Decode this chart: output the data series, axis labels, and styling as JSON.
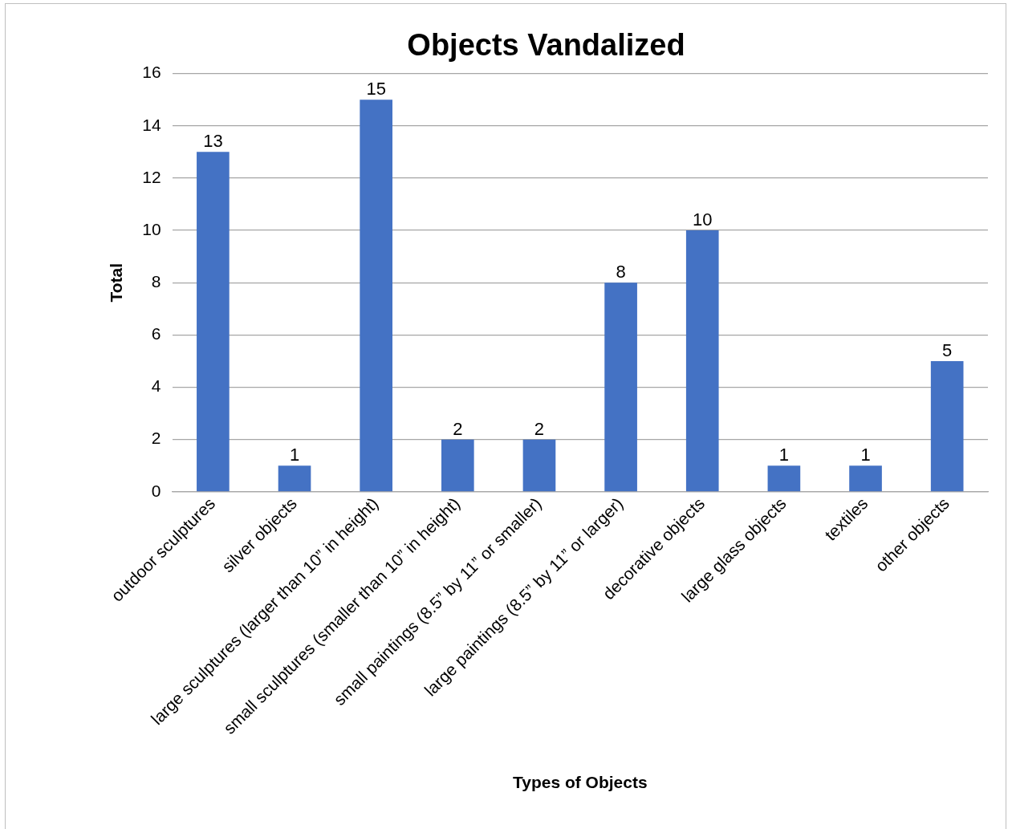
{
  "chart_data": {
    "type": "bar",
    "title": "Objects Vandalized",
    "xlabel": "Types of Objects",
    "ylabel": "Total",
    "categories": [
      "outdoor sculptures",
      "silver objects",
      "large sculptures (larger than 10” in height)",
      "small sculptures (smaller than 10” in height)",
      "small paintings (8.5” by 11” or smaller)",
      "large paintings (8.5” by 11” or larger)",
      "decorative objects",
      "large glass objects",
      "textiles",
      "other objects"
    ],
    "values": [
      13,
      1,
      15,
      2,
      2,
      8,
      10,
      1,
      1,
      5
    ],
    "color": "#4472c4",
    "ylim": [
      0,
      16
    ],
    "yticks": [
      0,
      2,
      4,
      6,
      8,
      10,
      12,
      14,
      16
    ],
    "grid": "y",
    "legend": false,
    "data_labels": true
  }
}
